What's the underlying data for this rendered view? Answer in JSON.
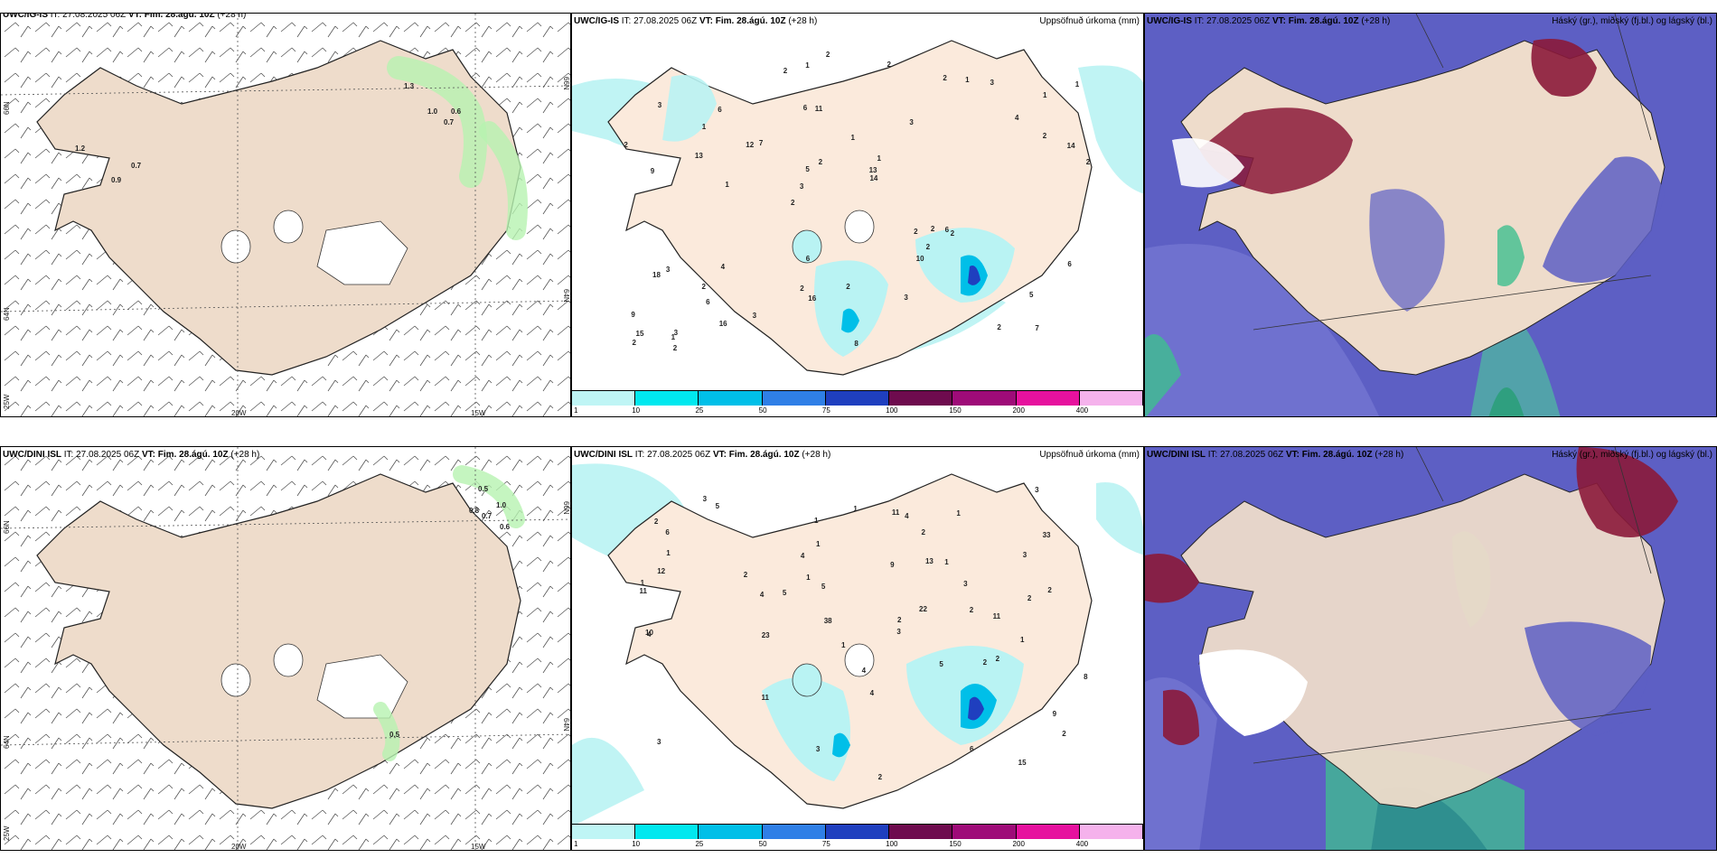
{
  "panels": {
    "wind_top": {
      "header_model": "UWC/IG-IS",
      "header_it": "IT: 27.08.2025 06Z",
      "header_vt": "VT: Fim. 28.ágú. 10Z",
      "header_lead": "(+28 h)",
      "lat_labels": [
        "66N",
        "64N",
        "25W"
      ],
      "lon_labels": [
        "20W",
        "15W"
      ],
      "right_labels": [
        "66N",
        "64N"
      ],
      "values": [
        "1.3",
        "1.0",
        "0.6",
        "0.7",
        "1.2",
        "0.7",
        "0.9"
      ]
    },
    "precip_top": {
      "header_model": "UWC/IG-IS",
      "header_it": "IT: 27.08.2025 06Z",
      "header_vt": "VT: Fim. 28.ágú. 10Z",
      "header_lead": "(+28 h)",
      "header_right": "Uppsöfnuð úrkoma (mm)",
      "values": [
        "7",
        "9",
        "1",
        "2",
        "3",
        "3",
        "6",
        "1",
        "3",
        "7",
        "9",
        "6",
        "11",
        "1",
        "2",
        "3",
        "1",
        "2",
        "2",
        "2",
        "3",
        "2",
        "5",
        "6",
        "2",
        "4",
        "2",
        "5",
        "6",
        "8",
        "12",
        "13",
        "10",
        "16",
        "14",
        "13",
        "15",
        "16",
        "14",
        "18",
        "4",
        "1",
        "2",
        "3",
        "2",
        "2",
        "2",
        "2",
        "3",
        "2",
        "1",
        "2",
        "1",
        "1",
        "1",
        "2",
        "2",
        "2",
        "6",
        "6",
        "3",
        "2"
      ]
    },
    "cloud_top": {
      "header_model": "UWC/IG-IS",
      "header_it": "IT: 27.08.2025 06Z",
      "header_vt": "VT: Fim. 28.ágú. 10Z",
      "header_lead": "(+28 h)",
      "header_right": "Háský (gr.), miðský (fj.bl.) og lágský (bl.)"
    },
    "wind_bottom": {
      "header_model": "UWC/DINI ISL",
      "header_it": "IT: 27.08.2025 06Z",
      "header_vt": "VT: Fim. 28.ágú. 10Z",
      "header_lead": "(+28 h)",
      "lat_labels": [
        "66N",
        "64N",
        "25W"
      ],
      "lon_labels": [
        "20W",
        "15W"
      ],
      "right_labels": [
        "66N",
        "64N"
      ],
      "values": [
        "0.5",
        "1.0",
        "0.8",
        "0.7",
        "0.6",
        "0.5"
      ]
    },
    "precip_bottom": {
      "header_model": "UWC/DINI ISL",
      "header_it": "IT: 27.08.2025 06Z",
      "header_vt": "VT: Fim. 28.ágú. 10Z",
      "header_lead": "(+28 h)",
      "header_right": "Uppsöfnuð úrkoma (mm)",
      "values": [
        "2",
        "1",
        "1",
        "2",
        "2",
        "4",
        "5",
        "3",
        "3",
        "3",
        "1",
        "5",
        "6",
        "5",
        "5",
        "2",
        "1",
        "2",
        "2",
        "2",
        "1",
        "4",
        "4",
        "1",
        "6",
        "9",
        "11",
        "11",
        "10",
        "3",
        "4",
        "11",
        "9",
        "15",
        "13",
        "22",
        "23",
        "38",
        "33",
        "12",
        "8",
        "11",
        "4",
        "2",
        "1",
        "2",
        "3",
        "4",
        "1",
        "3",
        "3",
        "1",
        "2",
        "2",
        "1"
      ]
    },
    "cloud_bottom": {
      "header_model": "UWC/DINI ISL",
      "header_it": "IT: 27.08.2025 06Z",
      "header_vt": "VT: Fim. 28.ágú. 10Z",
      "header_lead": "(+28 h)",
      "header_right": "Háský (gr.), miðský (fj.bl.) og lágský (bl.)"
    }
  },
  "colorbar": {
    "ticks": [
      "1",
      "10",
      "25",
      "50",
      "75",
      "100",
      "150",
      "200",
      "400"
    ],
    "colors": [
      "#bff5f5",
      "#00e8ef",
      "#00bfe8",
      "#2f7fe6",
      "#1f3fbf",
      "#6e0b4e",
      "#9e0b78",
      "#e6119e",
      "#f5b2ec"
    ]
  },
  "colors": {
    "land": "#eedccb",
    "land_precip": "#fbeadc",
    "sea_cloud": "#5d5fc4",
    "high_cloud": "#8b1a3a",
    "low_cloud_green": "#3fbf8f",
    "precip_light": "#b9f3f3",
    "wind_green": "#b7f2b0"
  }
}
